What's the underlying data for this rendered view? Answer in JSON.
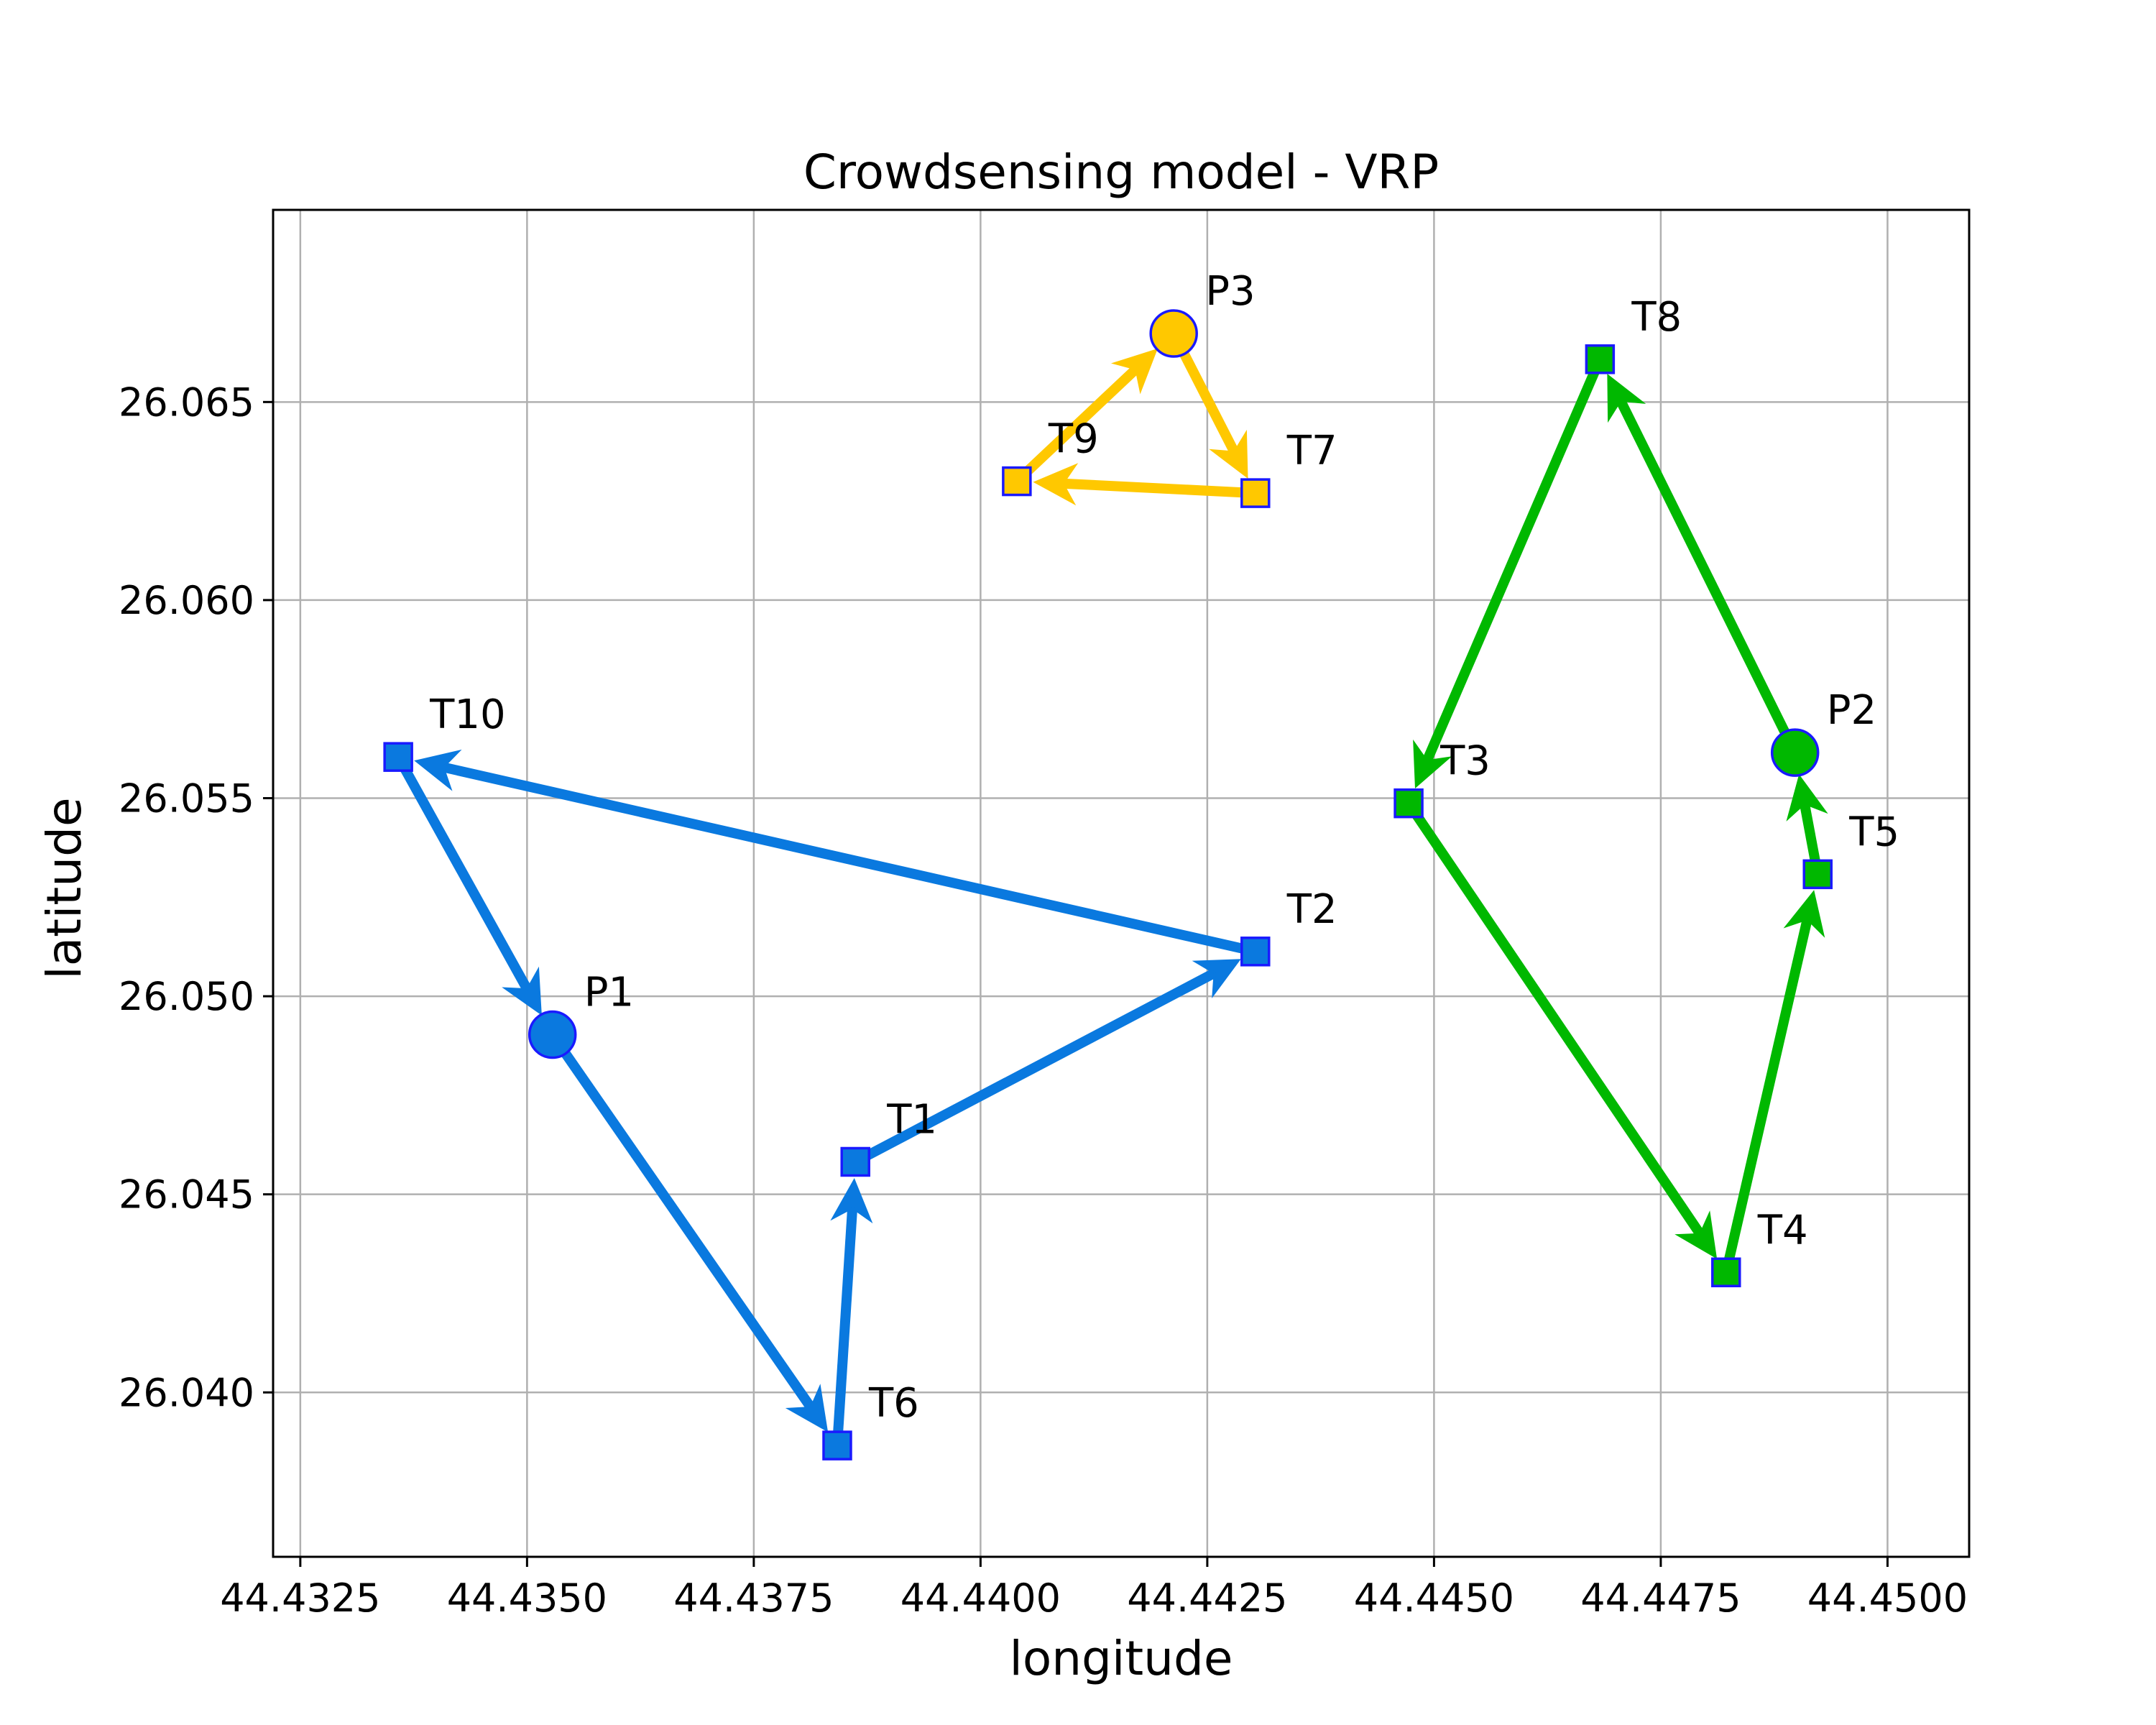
{
  "chart_data": {
    "type": "scatter",
    "title": "Crowdsensing model - VRP",
    "xlabel": "longitude",
    "ylabel": "latitude",
    "xlim": [
      44.4322,
      44.4509
    ],
    "ylim": [
      26.03585,
      26.06985
    ],
    "xticks": [
      {
        "value": 44.4325,
        "label": "44.4325"
      },
      {
        "value": 44.435,
        "label": "44.4350"
      },
      {
        "value": 44.4375,
        "label": "44.4375"
      },
      {
        "value": 44.44,
        "label": "44.4400"
      },
      {
        "value": 44.4425,
        "label": "44.4425"
      },
      {
        "value": 44.445,
        "label": "44.4450"
      },
      {
        "value": 44.4475,
        "label": "44.4475"
      },
      {
        "value": 44.45,
        "label": "44.4500"
      }
    ],
    "yticks": [
      {
        "value": 26.04,
        "label": "26.040"
      },
      {
        "value": 26.045,
        "label": "26.045"
      },
      {
        "value": 26.05,
        "label": "26.050"
      },
      {
        "value": 26.055,
        "label": "26.055"
      },
      {
        "value": 26.06,
        "label": "26.060"
      },
      {
        "value": 26.065,
        "label": "26.065"
      }
    ],
    "grid": true,
    "legend": "none",
    "points": [
      {
        "id": "P1",
        "label": "P1",
        "kind": "depot",
        "x": 44.43528,
        "y": 26.04903,
        "color": "#0a79df"
      },
      {
        "id": "P2",
        "label": "P2",
        "kind": "depot",
        "x": 44.44898,
        "y": 26.05615,
        "color": "#00b800"
      },
      {
        "id": "P3",
        "label": "P3",
        "kind": "depot",
        "x": 44.44213,
        "y": 26.06673,
        "color": "#ffc800"
      },
      {
        "id": "T1",
        "label": "T1",
        "kind": "task",
        "x": 44.43862,
        "y": 26.04582,
        "color": "#0a79df"
      },
      {
        "id": "T2",
        "label": "T2",
        "kind": "task",
        "x": 44.44303,
        "y": 26.05113,
        "color": "#0a79df"
      },
      {
        "id": "T3",
        "label": "T3",
        "kind": "task",
        "x": 44.44472,
        "y": 26.05487,
        "color": "#00b800"
      },
      {
        "id": "T4",
        "label": "T4",
        "kind": "task",
        "x": 44.44822,
        "y": 26.04303,
        "color": "#00b800"
      },
      {
        "id": "T5",
        "label": "T5",
        "kind": "task",
        "x": 44.44923,
        "y": 26.05308,
        "color": "#00b800"
      },
      {
        "id": "T6",
        "label": "T6",
        "kind": "task",
        "x": 44.43842,
        "y": 26.03866,
        "color": "#0a79df"
      },
      {
        "id": "T7",
        "label": "T7",
        "kind": "task",
        "x": 44.44303,
        "y": 26.0627,
        "color": "#ffc800"
      },
      {
        "id": "T8",
        "label": "T8",
        "kind": "task",
        "x": 44.44683,
        "y": 26.06608,
        "color": "#00b800"
      },
      {
        "id": "T9",
        "label": "T9",
        "kind": "task",
        "x": 44.4404,
        "y": 26.063,
        "color": "#ffc800"
      },
      {
        "id": "T10",
        "label": "T10",
        "kind": "task",
        "x": 44.43358,
        "y": 26.05604,
        "color": "#0a79df"
      }
    ],
    "routes": [
      {
        "color": "#0a79df",
        "stops": [
          "P1",
          "T6",
          "T1",
          "T2",
          "T10",
          "P1"
        ]
      },
      {
        "color": "#00b800",
        "stops": [
          "P2",
          "T8",
          "T3",
          "T4",
          "T5",
          "P2"
        ]
      },
      {
        "color": "#ffc800",
        "stops": [
          "P3",
          "T7",
          "T9",
          "P3"
        ]
      }
    ],
    "marker_edge_color": "#1a1aff"
  }
}
